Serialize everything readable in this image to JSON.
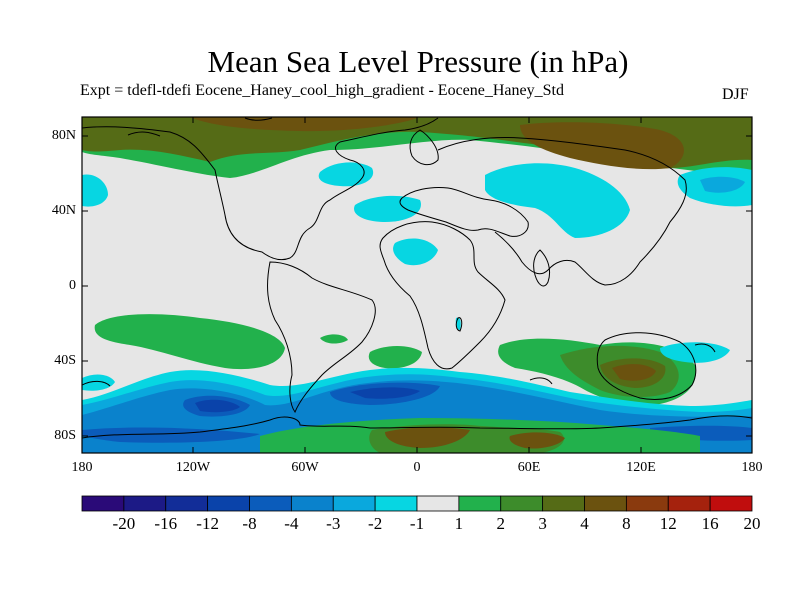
{
  "title": "Mean Sea Level Pressure (in hPa)",
  "subtitle": "Expt = tdefl-tdefi  Eocene_Haney_cool_high_gradient - Eocene_Haney_Std",
  "season": "DJF",
  "lat_labels": [
    "80N",
    "40N",
    "0",
    "40S",
    "80S"
  ],
  "lon_labels": [
    "180",
    "120W",
    "60W",
    "0",
    "60E",
    "120E",
    "180"
  ],
  "colorbar": {
    "labels": [
      "-20",
      "-16",
      "-12",
      "-8",
      "-4",
      "-3",
      "-2",
      "-1",
      "1",
      "2",
      "3",
      "4",
      "8",
      "12",
      "16",
      "20"
    ],
    "colors": [
      "#2a0a78",
      "#1c1a86",
      "#122d98",
      "#0a43aa",
      "#0b5cbb",
      "#0a82cc",
      "#0aa8dd",
      "#07d6e2",
      "#e6e6e6",
      "#22b14c",
      "#3d8c2b",
      "#556b16",
      "#6b520f",
      "#8a3a0e",
      "#a5220d",
      "#c00d0d"
    ]
  },
  "colors": {
    "background": "#e6e6e6",
    "coast": "#000000"
  }
}
